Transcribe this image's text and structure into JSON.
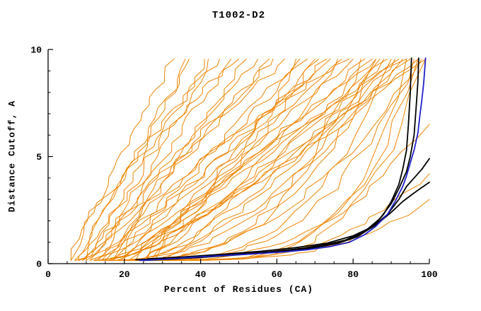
{
  "chart_data": {
    "type": "line",
    "title": "T1002-D2",
    "xlabel": "Percent of Residues (CA)",
    "ylabel": "Distance Cutoff, A",
    "xlim": [
      0,
      100
    ],
    "ylim": [
      0,
      10
    ],
    "x_ticks": [
      0,
      20,
      40,
      60,
      80,
      100
    ],
    "x_minor_ticks": [
      5,
      10,
      15,
      25,
      30,
      35,
      45,
      50,
      55,
      65,
      70,
      75,
      85,
      90,
      95
    ],
    "y_ticks": [
      0,
      5,
      10
    ],
    "y_minor_ticks": [
      1,
      2,
      3,
      4,
      6,
      7,
      8,
      9
    ],
    "grid": false,
    "legend": "none",
    "colors": {
      "ensemble": "#ef8400",
      "black_model": "#000000",
      "blue_model": "#2121cc",
      "axis": "#000000",
      "background": "#ffffff"
    },
    "series": [
      {
        "name": "black-model-1",
        "color_key": "black_model",
        "width": 1.8,
        "points": [
          [
            25,
            0.15
          ],
          [
            33,
            0.22
          ],
          [
            41,
            0.3
          ],
          [
            49,
            0.4
          ],
          [
            57,
            0.5
          ],
          [
            64,
            0.62
          ],
          [
            70,
            0.75
          ],
          [
            76,
            0.95
          ],
          [
            81,
            1.25
          ],
          [
            85,
            1.7
          ],
          [
            88,
            2.3
          ],
          [
            90,
            2.9
          ],
          [
            92,
            3.7
          ],
          [
            93,
            4.4
          ],
          [
            94,
            5.3
          ],
          [
            94.5,
            6.5
          ],
          [
            95,
            8.0
          ],
          [
            95.3,
            9.6
          ]
        ]
      },
      {
        "name": "black-model-2",
        "color_key": "black_model",
        "width": 1.8,
        "points": [
          [
            23,
            0.18
          ],
          [
            32,
            0.25
          ],
          [
            42,
            0.34
          ],
          [
            52,
            0.45
          ],
          [
            60,
            0.58
          ],
          [
            67,
            0.72
          ],
          [
            73,
            0.9
          ],
          [
            78,
            1.1
          ],
          [
            83,
            1.5
          ],
          [
            87,
            2.1
          ],
          [
            90,
            2.8
          ],
          [
            92,
            3.5
          ],
          [
            94,
            4.3
          ],
          [
            95,
            5.0
          ],
          [
            96,
            6.0
          ],
          [
            96.5,
            7.2
          ],
          [
            97,
            8.5
          ],
          [
            97.2,
            9.6
          ]
        ]
      },
      {
        "name": "black-model-3",
        "color_key": "black_model",
        "width": 1.8,
        "points": [
          [
            28,
            0.2
          ],
          [
            38,
            0.3
          ],
          [
            48,
            0.42
          ],
          [
            58,
            0.55
          ],
          [
            67,
            0.7
          ],
          [
            74,
            0.9
          ],
          [
            80,
            1.2
          ],
          [
            85,
            1.7
          ],
          [
            89,
            2.3
          ],
          [
            92,
            3.0
          ],
          [
            94,
            3.6
          ],
          [
            96,
            4.0
          ],
          [
            98,
            4.4
          ],
          [
            100,
            4.9
          ]
        ]
      },
      {
        "name": "black-model-4",
        "color_key": "black_model",
        "width": 1.8,
        "points": [
          [
            26,
            0.22
          ],
          [
            36,
            0.32
          ],
          [
            46,
            0.44
          ],
          [
            56,
            0.58
          ],
          [
            65,
            0.75
          ],
          [
            73,
            0.95
          ],
          [
            80,
            1.3
          ],
          [
            86,
            1.8
          ],
          [
            90,
            2.4
          ],
          [
            93,
            2.9
          ],
          [
            96,
            3.3
          ],
          [
            98,
            3.55
          ],
          [
            100,
            3.8
          ]
        ]
      },
      {
        "name": "blue-model",
        "color_key": "blue_model",
        "width": 1.8,
        "points": [
          [
            24,
            0.15
          ],
          [
            30,
            0.2
          ],
          [
            38,
            0.3
          ],
          [
            46,
            0.38
          ],
          [
            54,
            0.46
          ],
          [
            62,
            0.55
          ],
          [
            68,
            0.65
          ],
          [
            74,
            0.8
          ],
          [
            79,
            1.0
          ],
          [
            83,
            1.35
          ],
          [
            86,
            1.75
          ],
          [
            89,
            2.3
          ],
          [
            91,
            2.9
          ],
          [
            93,
            3.6
          ],
          [
            94,
            4.1
          ],
          [
            95,
            4.7
          ],
          [
            96,
            5.3
          ],
          [
            97,
            6.1
          ],
          [
            97.5,
            6.9
          ],
          [
            98,
            7.6
          ],
          [
            98.5,
            8.4
          ],
          [
            99,
            9.6
          ]
        ]
      }
    ],
    "ensemble": {
      "name": "decoy-curves",
      "color_key": "ensemble",
      "width": 1,
      "y_start": 0.15,
      "y_top_default": 9.55,
      "curves": [
        [
          6,
          33,
          0.9
        ],
        [
          7,
          37,
          1.0
        ],
        [
          9,
          41,
          1.1
        ],
        [
          6,
          45,
          0.8
        ],
        [
          11,
          48,
          1.0
        ],
        [
          8,
          52,
          1.2
        ],
        [
          13,
          55,
          0.9
        ],
        [
          10,
          58,
          1.05
        ],
        [
          15,
          62,
          0.85
        ],
        [
          12,
          65,
          1.15
        ],
        [
          17,
          68,
          0.95
        ],
        [
          9,
          71,
          1.25
        ],
        [
          19,
          74,
          0.9
        ],
        [
          14,
          77,
          1.1
        ],
        [
          21,
          80,
          1.0
        ],
        [
          11,
          83,
          1.3
        ],
        [
          23,
          86,
          0.9
        ],
        [
          16,
          89,
          1.15
        ],
        [
          25,
          92,
          1.0
        ],
        [
          13,
          95,
          1.35
        ],
        [
          27,
          97,
          0.95
        ],
        [
          18,
          99,
          1.2
        ],
        [
          7,
          42,
          1.4
        ],
        [
          20,
          59,
          0.7
        ],
        [
          24,
          66,
          1.3
        ],
        [
          28,
          73,
          0.8
        ],
        [
          22,
          88,
          1.5
        ],
        [
          26,
          94,
          0.75
        ],
        [
          8,
          36,
          1.2
        ],
        [
          10,
          50,
          0.65
        ],
        [
          30,
          85,
          1.1
        ],
        [
          29,
          91,
          1.3
        ],
        [
          15,
          70,
          1.6
        ],
        [
          17,
          79,
          0.7
        ],
        [
          19,
          93,
          1.8
        ],
        [
          12,
          76,
          1.9
        ],
        [
          21,
          98,
          2.2
        ],
        [
          14,
          87,
          2.5
        ],
        [
          23,
          96,
          3.0
        ],
        [
          16,
          90,
          3.5
        ],
        [
          24,
          97,
          4.2
        ],
        [
          12,
          86,
          3.2
        ],
        [
          18,
          94,
          5.0
        ],
        [
          26,
          99,
          4.5
        ],
        [
          28,
          100,
          2.6,
          6.5
        ],
        [
          30,
          100,
          3.0,
          4.2
        ],
        [
          25,
          100,
          3.5,
          3.0
        ],
        [
          20,
          82,
          2.8
        ]
      ]
    }
  }
}
